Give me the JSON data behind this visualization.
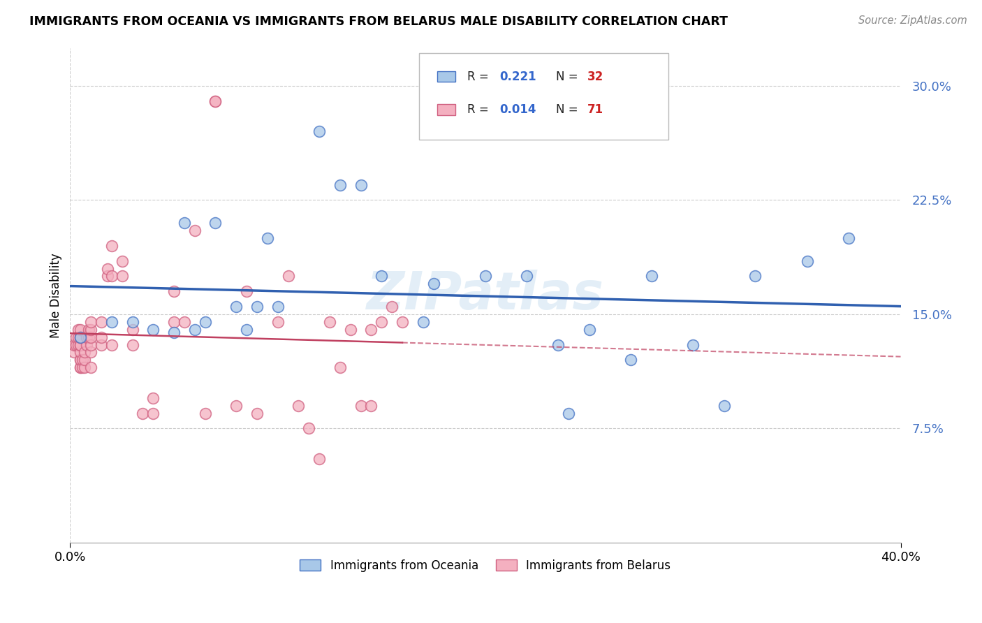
{
  "title": "IMMIGRANTS FROM OCEANIA VS IMMIGRANTS FROM BELARUS MALE DISABILITY CORRELATION CHART",
  "source": "Source: ZipAtlas.com",
  "ylabel": "Male Disability",
  "xlim": [
    0.0,
    0.4
  ],
  "ylim": [
    0.0,
    0.325
  ],
  "yticks": [
    0.075,
    0.15,
    0.225,
    0.3
  ],
  "ytick_labels": [
    "7.5%",
    "15.0%",
    "22.5%",
    "30.0%"
  ],
  "xtick_left": "0.0%",
  "xtick_right": "40.0%",
  "watermark": "ZIPatlas",
  "color_oceania": "#a8c8e8",
  "color_oceania_edge": "#4472c4",
  "color_oceania_line": "#3060b0",
  "color_belarus": "#f4b0c0",
  "color_belarus_edge": "#d06080",
  "color_belarus_line": "#c04060",
  "legend_box_color": "#e8e8e8",
  "oceania_x": [
    0.005,
    0.02,
    0.03,
    0.04,
    0.05,
    0.055,
    0.06,
    0.065,
    0.07,
    0.08,
    0.085,
    0.09,
    0.095,
    0.1,
    0.12,
    0.13,
    0.14,
    0.15,
    0.17,
    0.175,
    0.2,
    0.22,
    0.235,
    0.24,
    0.25,
    0.27,
    0.28,
    0.3,
    0.315,
    0.33,
    0.355,
    0.375
  ],
  "oceania_y": [
    0.135,
    0.145,
    0.145,
    0.14,
    0.138,
    0.21,
    0.14,
    0.145,
    0.21,
    0.155,
    0.14,
    0.155,
    0.2,
    0.155,
    0.27,
    0.235,
    0.235,
    0.175,
    0.145,
    0.17,
    0.175,
    0.175,
    0.13,
    0.085,
    0.14,
    0.12,
    0.175,
    0.13,
    0.09,
    0.175,
    0.185,
    0.2
  ],
  "belarus_x": [
    0.002,
    0.002,
    0.003,
    0.003,
    0.004,
    0.004,
    0.004,
    0.005,
    0.005,
    0.005,
    0.005,
    0.005,
    0.005,
    0.005,
    0.005,
    0.005,
    0.005,
    0.006,
    0.006,
    0.007,
    0.007,
    0.007,
    0.008,
    0.008,
    0.009,
    0.009,
    0.01,
    0.01,
    0.01,
    0.01,
    0.01,
    0.01,
    0.015,
    0.015,
    0.015,
    0.018,
    0.018,
    0.02,
    0.02,
    0.02,
    0.025,
    0.025,
    0.03,
    0.03,
    0.035,
    0.04,
    0.04,
    0.05,
    0.05,
    0.055,
    0.06,
    0.065,
    0.07,
    0.07,
    0.08,
    0.085,
    0.09,
    0.1,
    0.105,
    0.11,
    0.115,
    0.12,
    0.125,
    0.13,
    0.135,
    0.14,
    0.145,
    0.145,
    0.15,
    0.155,
    0.16
  ],
  "belarus_y": [
    0.125,
    0.13,
    0.13,
    0.135,
    0.13,
    0.135,
    0.14,
    0.115,
    0.115,
    0.12,
    0.12,
    0.125,
    0.13,
    0.13,
    0.135,
    0.135,
    0.14,
    0.115,
    0.12,
    0.115,
    0.12,
    0.125,
    0.13,
    0.135,
    0.135,
    0.14,
    0.115,
    0.125,
    0.13,
    0.135,
    0.14,
    0.145,
    0.13,
    0.135,
    0.145,
    0.175,
    0.18,
    0.13,
    0.175,
    0.195,
    0.185,
    0.175,
    0.13,
    0.14,
    0.085,
    0.085,
    0.095,
    0.145,
    0.165,
    0.145,
    0.205,
    0.085,
    0.29,
    0.29,
    0.09,
    0.165,
    0.085,
    0.145,
    0.175,
    0.09,
    0.075,
    0.055,
    0.145,
    0.115,
    0.14,
    0.09,
    0.09,
    0.14,
    0.145,
    0.155,
    0.145
  ]
}
